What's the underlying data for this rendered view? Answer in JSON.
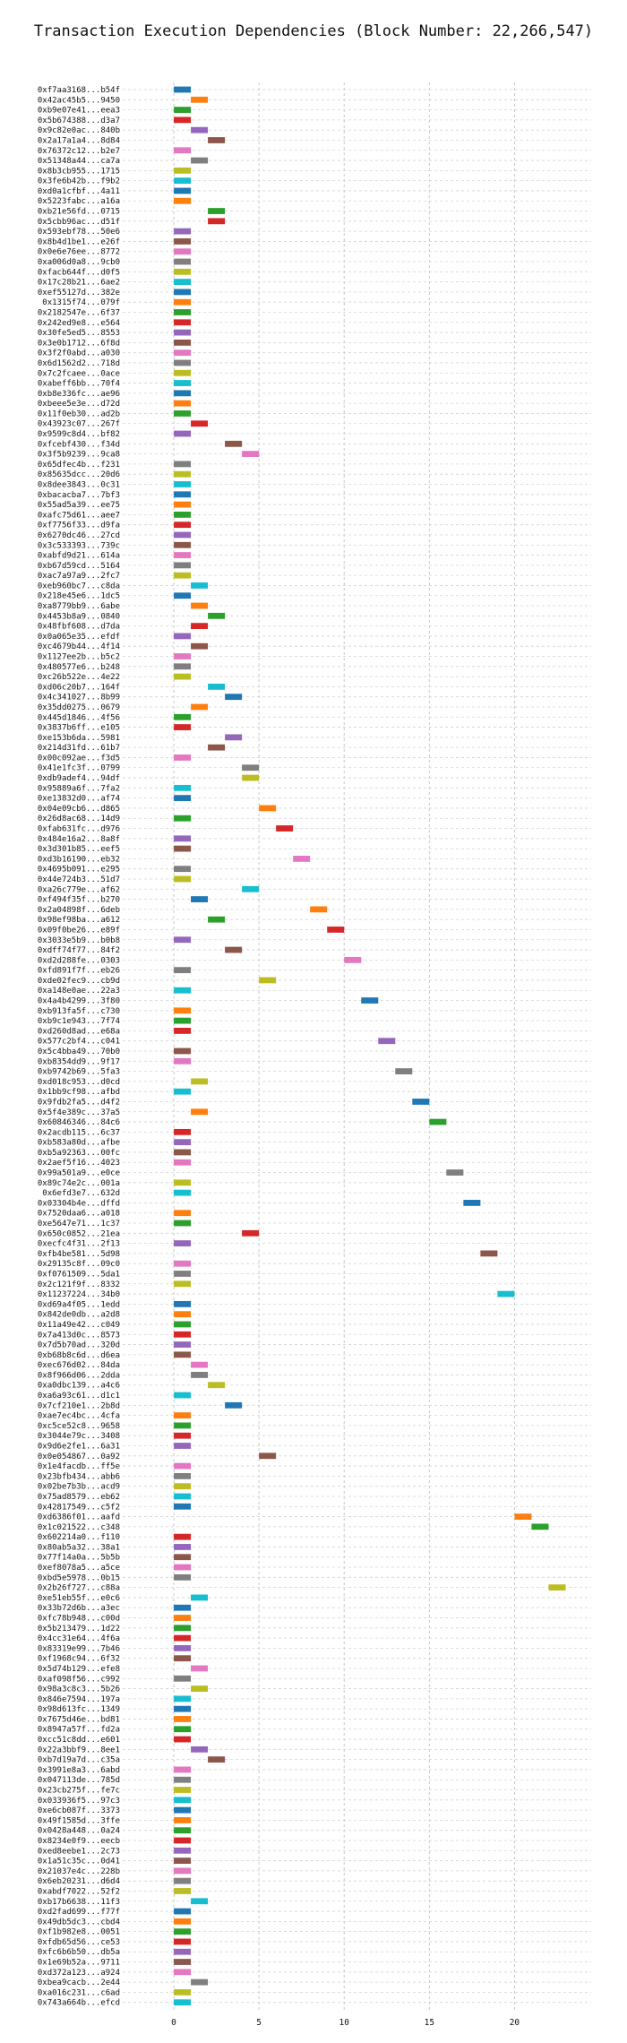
{
  "chart_data": {
    "type": "bar",
    "orientation": "horizontal-gantt",
    "title": "Transaction Execution Dependencies (Block Number: 22,266,547)",
    "xlabel": "",
    "ylabel": "",
    "xlim": [
      -3,
      24.5
    ],
    "xticks": [
      0,
      5,
      10,
      15,
      20
    ],
    "grid": true,
    "palette": [
      "#1f77b4",
      "#ff7f0e",
      "#2ca02c",
      "#d62728",
      "#9467bd",
      "#8c564b",
      "#e377c2",
      "#7f7f7f",
      "#bcbd22",
      "#17becf"
    ],
    "transactions": [
      {
        "label": "0xf7aa3168...b54f",
        "start": 0
      },
      {
        "label": "0x42ac45b5...9450",
        "start": 1
      },
      {
        "label": "0xb9e07e41...eea3",
        "start": 0
      },
      {
        "label": "0x5b674388...d3a7",
        "start": 0
      },
      {
        "label": "0x9c82e0ac...840b",
        "start": 1
      },
      {
        "label": "0x2a17a1a4...8d84",
        "start": 2
      },
      {
        "label": "0x76372c12...b2e7",
        "start": 0
      },
      {
        "label": "0x51348a44...ca7a",
        "start": 1
      },
      {
        "label": "0x8b3cb955...1715",
        "start": 0
      },
      {
        "label": "0x3fe6b42b...f9b2",
        "start": 0
      },
      {
        "label": "0xd0a1cfbf...4a11",
        "start": 0
      },
      {
        "label": "0x5223fabc...a16a",
        "start": 0
      },
      {
        "label": "0xb21e56fd...0715",
        "start": 2
      },
      {
        "label": "0x5cbb96ac...d51f",
        "start": 2
      },
      {
        "label": "0x593ebf78...50e6",
        "start": 0
      },
      {
        "label": "0x8b4d1be1...e26f",
        "start": 0
      },
      {
        "label": "0x0e6e76ee...8772",
        "start": 0
      },
      {
        "label": "0xa006d0a8...9cb0",
        "start": 0
      },
      {
        "label": "0xfacb644f...d0f5",
        "start": 0
      },
      {
        "label": "0x17c28b21...6ae2",
        "start": 0
      },
      {
        "label": "0xef55127d...382e",
        "start": 0
      },
      {
        "label": "0x1315f74...079f",
        "start": 0
      },
      {
        "label": "0x2182547e...6f37",
        "start": 0
      },
      {
        "label": "0x242ed9e8...e564",
        "start": 0
      },
      {
        "label": "0x30fe5ed5...8553",
        "start": 0
      },
      {
        "label": "0x3e0b1712...6f8d",
        "start": 0
      },
      {
        "label": "0x3f2f0abd...a030",
        "start": 0
      },
      {
        "label": "0x6d1562d2...718d",
        "start": 0
      },
      {
        "label": "0x7c2fcaee...0ace",
        "start": 0
      },
      {
        "label": "0xabeff6bb...70f4",
        "start": 0
      },
      {
        "label": "0xb8e336fc...ae96",
        "start": 0
      },
      {
        "label": "0xbeee5e3e...d72d",
        "start": 0
      },
      {
        "label": "0x11f0eb30...ad2b",
        "start": 0
      },
      {
        "label": "0x43923c07...267f",
        "start": 1
      },
      {
        "label": "0x9599c8d4...bf82",
        "start": 0
      },
      {
        "label": "0xfcebf430...f34d",
        "start": 3
      },
      {
        "label": "0x3f5b9239...9ca8",
        "start": 4
      },
      {
        "label": "0x65dfec4b...f231",
        "start": 0
      },
      {
        "label": "0x85635dcc...20d6",
        "start": 0
      },
      {
        "label": "0x8dee3843...0c31",
        "start": 0
      },
      {
        "label": "0xbacacba7...7bf3",
        "start": 0
      },
      {
        "label": "0x55ad5a39...ee75",
        "start": 0
      },
      {
        "label": "0xafc75d61...aee7",
        "start": 0
      },
      {
        "label": "0xf7756f33...d9fa",
        "start": 0
      },
      {
        "label": "0x6270dc46...27cd",
        "start": 0
      },
      {
        "label": "0x3c533393...739c",
        "start": 0
      },
      {
        "label": "0xabfd9d21...614a",
        "start": 0
      },
      {
        "label": "0xb67d59cd...5164",
        "start": 0
      },
      {
        "label": "0xac7a97a9...2fc7",
        "start": 0
      },
      {
        "label": "0xeb960bc7...c8da",
        "start": 1
      },
      {
        "label": "0x218e45e6...1dc5",
        "start": 0
      },
      {
        "label": "0xa8779bb9...6abe",
        "start": 1
      },
      {
        "label": "0x4453b8a9...0840",
        "start": 2
      },
      {
        "label": "0x48fbf608...d7da",
        "start": 1
      },
      {
        "label": "0x0a065e35...efdf",
        "start": 0
      },
      {
        "label": "0xc4679b44...4f14",
        "start": 1
      },
      {
        "label": "0x1127ee2b...b5c2",
        "start": 0
      },
      {
        "label": "0x480577e6...b248",
        "start": 0
      },
      {
        "label": "0xc26b522e...4e22",
        "start": 0
      },
      {
        "label": "0xd06c20b7...164f",
        "start": 2
      },
      {
        "label": "0x4c341027...8b99",
        "start": 3
      },
      {
        "label": "0x35dd0275...0679",
        "start": 1
      },
      {
        "label": "0x445d1846...4f56",
        "start": 0
      },
      {
        "label": "0x3837b6ff...e105",
        "start": 0
      },
      {
        "label": "0xe153b6da...5981",
        "start": 3
      },
      {
        "label": "0x214d31fd...61b7",
        "start": 2
      },
      {
        "label": "0x00c092ae...f3d5",
        "start": 0
      },
      {
        "label": "0x41e1fc3f...0799",
        "start": 4
      },
      {
        "label": "0xdb9adef4...94df",
        "start": 4
      },
      {
        "label": "0x95889a6f...7fa2",
        "start": 0
      },
      {
        "label": "0xe13832d0...af74",
        "start": 0
      },
      {
        "label": "0x04e09cb6...d865",
        "start": 5
      },
      {
        "label": "0x26d8ac68...14d9",
        "start": 0
      },
      {
        "label": "0xfab631fc...d976",
        "start": 6
      },
      {
        "label": "0x484e16a2...8a8f",
        "start": 0
      },
      {
        "label": "0x3d301b85...eef5",
        "start": 0
      },
      {
        "label": "0xd3b16190...eb32",
        "start": 7
      },
      {
        "label": "0x4695b091...e295",
        "start": 0
      },
      {
        "label": "0x44e724b3...51d7",
        "start": 0
      },
      {
        "label": "0xa26c779e...af62",
        "start": 4
      },
      {
        "label": "0xf494f35f...b270",
        "start": 1
      },
      {
        "label": "0x2a04898f...6deb",
        "start": 8
      },
      {
        "label": "0x98ef98ba...a612",
        "start": 2
      },
      {
        "label": "0x09f0be26...e89f",
        "start": 9
      },
      {
        "label": "0x3033e5b9...b0b8",
        "start": 0
      },
      {
        "label": "0xdff74f77...84f2",
        "start": 3
      },
      {
        "label": "0xd2d288fe...0303",
        "start": 10
      },
      {
        "label": "0xfd891f7f...eb26",
        "start": 0
      },
      {
        "label": "0xde02fec9...cb9d",
        "start": 5
      },
      {
        "label": "0xa148e0ae...22a3",
        "start": 0
      },
      {
        "label": "0x4a4b4299...3f80",
        "start": 11
      },
      {
        "label": "0xb913fa5f...c730",
        "start": 0
      },
      {
        "label": "0xb9c1e943...7f74",
        "start": 0
      },
      {
        "label": "0xd260d8ad...e68a",
        "start": 0
      },
      {
        "label": "0x577c2bf4...c041",
        "start": 12
      },
      {
        "label": "0x5c4bba49...70b0",
        "start": 0
      },
      {
        "label": "0xb8354dd9...9f17",
        "start": 0
      },
      {
        "label": "0xb9742b69...5fa3",
        "start": 13
      },
      {
        "label": "0xd018c953...d0cd",
        "start": 1
      },
      {
        "label": "0x1bb9cf98...afbd",
        "start": 0
      },
      {
        "label": "0x9fdb2fa5...d4f2",
        "start": 14
      },
      {
        "label": "0x5f4e389c...37a5",
        "start": 1
      },
      {
        "label": "0x60846346...84c6",
        "start": 15
      },
      {
        "label": "0x2acdb115...6c37",
        "start": 0
      },
      {
        "label": "0xb583a80d...afbe",
        "start": 0
      },
      {
        "label": "0xb5a92363...00fc",
        "start": 0
      },
      {
        "label": "0x2aef5f16...4023",
        "start": 0
      },
      {
        "label": "0x99a501a9...e0ce",
        "start": 16
      },
      {
        "label": "0x89c74e2c...001a",
        "start": 0
      },
      {
        "label": "0x6efd3e7...632d",
        "start": 0
      },
      {
        "label": "0x03304b4e...dffd",
        "start": 17
      },
      {
        "label": "0x7520daa6...a018",
        "start": 0
      },
      {
        "label": "0xe5647e71...1c37",
        "start": 0
      },
      {
        "label": "0x650c0852...21ea",
        "start": 4
      },
      {
        "label": "0xecfc4f31...2f13",
        "start": 0
      },
      {
        "label": "0xfb4be581...5d98",
        "start": 18
      },
      {
        "label": "0x29135c8f...09c0",
        "start": 0
      },
      {
        "label": "0xf0761509...5da1",
        "start": 0
      },
      {
        "label": "0x2c121f9f...8332",
        "start": 0
      },
      {
        "label": "0x11237224...34b0",
        "start": 19
      },
      {
        "label": "0xd69a4f05...1edd",
        "start": 0
      },
      {
        "label": "0x842de0db...a2d8",
        "start": 0
      },
      {
        "label": "0x11a49e42...c049",
        "start": 0
      },
      {
        "label": "0x7a413d0c...8573",
        "start": 0
      },
      {
        "label": "0x7d5b70ad...320d",
        "start": 0
      },
      {
        "label": "0xb68b8c6d...d6ea",
        "start": 0
      },
      {
        "label": "0xec676d02...84da",
        "start": 1
      },
      {
        "label": "0x8f966d06...2dda",
        "start": 1
      },
      {
        "label": "0xa0dbc139...a4c6",
        "start": 2
      },
      {
        "label": "0xa6a93c61...d1c1",
        "start": 0
      },
      {
        "label": "0x7cf210e1...2b8d",
        "start": 3
      },
      {
        "label": "0xae7ec4bc...4cfa",
        "start": 0
      },
      {
        "label": "0xc5ce52c8...9658",
        "start": 0
      },
      {
        "label": "0x3044e79c...3408",
        "start": 0
      },
      {
        "label": "0x9d6e2fe1...6a31",
        "start": 0
      },
      {
        "label": "0x0e054867...0a92",
        "start": 5
      },
      {
        "label": "0x1e4facdb...ff5e",
        "start": 0
      },
      {
        "label": "0x23bfb434...abb6",
        "start": 0
      },
      {
        "label": "0x02be7b3b...acd9",
        "start": 0
      },
      {
        "label": "0x75ad8579...eb62",
        "start": 0
      },
      {
        "label": "0x42817549...c5f2",
        "start": 0
      },
      {
        "label": "0xd6386f01...aafd",
        "start": 20
      },
      {
        "label": "0x1c021522...c348",
        "start": 21
      },
      {
        "label": "0x602214a0...f110",
        "start": 0
      },
      {
        "label": "0x80ab5a32...38a1",
        "start": 0
      },
      {
        "label": "0x77f14a0a...5b5b",
        "start": 0
      },
      {
        "label": "0xef8078a5...a5ce",
        "start": 0
      },
      {
        "label": "0xbd5e5978...0b15",
        "start": 0
      },
      {
        "label": "0x2b26f727...c88a",
        "start": 22
      },
      {
        "label": "0xe51eb55f...e0c6",
        "start": 1
      },
      {
        "label": "0x33b72d6b...a3ec",
        "start": 0
      },
      {
        "label": "0xfc78b948...c00d",
        "start": 0
      },
      {
        "label": "0x5b213479...1d22",
        "start": 0
      },
      {
        "label": "0x4cc31e64...4f6a",
        "start": 0
      },
      {
        "label": "0x83319e99...7b46",
        "start": 0
      },
      {
        "label": "0xf1968c94...6f32",
        "start": 0
      },
      {
        "label": "0x5d74b129...efe8",
        "start": 1
      },
      {
        "label": "0xaf098f56...c992",
        "start": 0
      },
      {
        "label": "0x98a3c8c3...5b26",
        "start": 1
      },
      {
        "label": "0x846e7594...197a",
        "start": 0
      },
      {
        "label": "0x98d613fc...1349",
        "start": 0
      },
      {
        "label": "0x7675d46e...bd81",
        "start": 0
      },
      {
        "label": "0x8947a57f...fd2a",
        "start": 0
      },
      {
        "label": "0xcc51c8dd...e601",
        "start": 0
      },
      {
        "label": "0x22a3bbf9...8ee1",
        "start": 1
      },
      {
        "label": "0xb7d19a7d...c35a",
        "start": 2
      },
      {
        "label": "0x3991e8a3...6abd",
        "start": 0
      },
      {
        "label": "0x047113de...785d",
        "start": 0
      },
      {
        "label": "0x23cb275f...fe7c",
        "start": 0
      },
      {
        "label": "0x033936f5...97c3",
        "start": 0
      },
      {
        "label": "0xe6cb087f...3373",
        "start": 0
      },
      {
        "label": "0x49f1585d...3ffe",
        "start": 0
      },
      {
        "label": "0x0428a448...0a24",
        "start": 0
      },
      {
        "label": "0x8234e0f9...eecb",
        "start": 0
      },
      {
        "label": "0xed8eebe1...2c73",
        "start": 0
      },
      {
        "label": "0x1a51c35c...0d41",
        "start": 0
      },
      {
        "label": "0x21037e4c...228b",
        "start": 0
      },
      {
        "label": "0x6eb20231...d6d4",
        "start": 0
      },
      {
        "label": "0xabdf7022...52f2",
        "start": 0
      },
      {
        "label": "0xb17b6638...11f3",
        "start": 1
      },
      {
        "label": "0xd2fad699...f77f",
        "start": 0
      },
      {
        "label": "0x49db5dc3...cbd4",
        "start": 0
      },
      {
        "label": "0xf1b982e8...0051",
        "start": 0
      },
      {
        "label": "0xfdb65d56...ce53",
        "start": 0
      },
      {
        "label": "0xfc6b6b50...db5a",
        "start": 0
      },
      {
        "label": "0x1e69b52a...9711",
        "start": 0
      },
      {
        "label": "0xd372a123...a924",
        "start": 0
      },
      {
        "label": "0xbea9cacb...2e44",
        "start": 1
      },
      {
        "label": "0xa016c231...c6ad",
        "start": 0
      },
      {
        "label": "0x743a664b...efcd",
        "start": 0
      }
    ]
  }
}
